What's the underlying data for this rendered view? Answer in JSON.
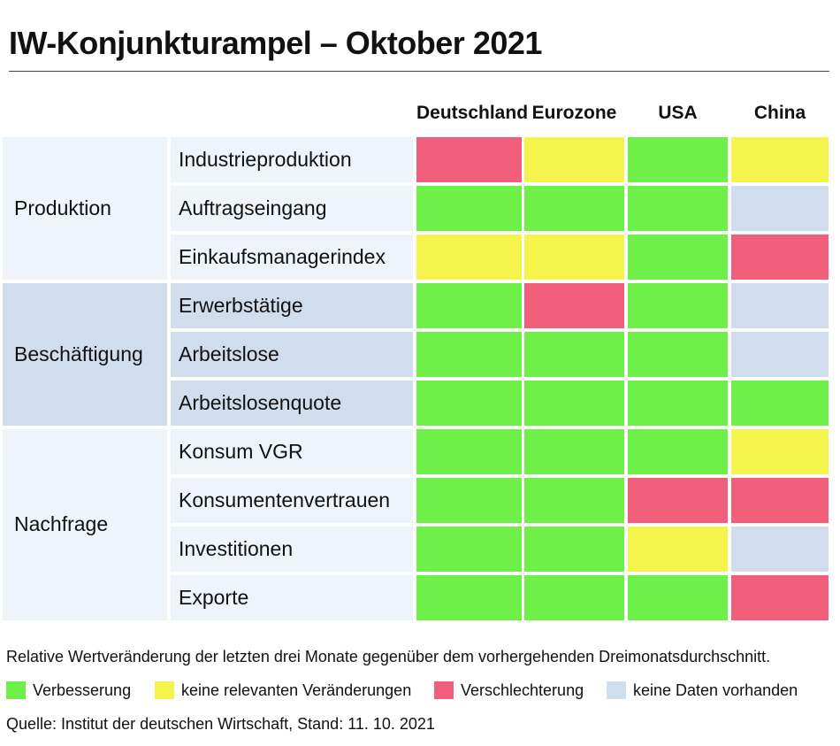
{
  "title": "IW-Konjunkturampel – Oktober 2021",
  "colors": {
    "improvement": "#6ef049",
    "no_change": "#f4f44d",
    "deterioration": "#f25f7a",
    "no_data": "#cfddec",
    "band_light": "#eef4f9",
    "band_dark": "#cfddec"
  },
  "chart_data": {
    "type": "table",
    "columns": [
      "Deutschland",
      "Eurozone",
      "USA",
      "China"
    ],
    "groups": [
      {
        "name": "Produktion",
        "rows": [
          {
            "label": "Industrieproduktion",
            "values": [
              "deterioration",
              "no_change",
              "improvement",
              "no_change"
            ]
          },
          {
            "label": "Auftragseingang",
            "values": [
              "improvement",
              "improvement",
              "improvement",
              "no_data"
            ]
          },
          {
            "label": "Einkaufsmanagerindex",
            "values": [
              "no_change",
              "no_change",
              "improvement",
              "deterioration"
            ]
          }
        ]
      },
      {
        "name": "Beschäftigung",
        "rows": [
          {
            "label": "Erwerbstätige",
            "values": [
              "improvement",
              "deterioration",
              "improvement",
              "no_data"
            ]
          },
          {
            "label": "Arbeitslose",
            "values": [
              "improvement",
              "improvement",
              "improvement",
              "no_data"
            ]
          },
          {
            "label": "Arbeitslosenquote",
            "values": [
              "improvement",
              "improvement",
              "improvement",
              "improvement"
            ]
          }
        ]
      },
      {
        "name": "Nachfrage",
        "rows": [
          {
            "label": "Konsum VGR",
            "values": [
              "improvement",
              "improvement",
              "improvement",
              "no_change"
            ]
          },
          {
            "label": "Konsumentenvertrauen",
            "values": [
              "improvement",
              "improvement",
              "deterioration",
              "deterioration"
            ]
          },
          {
            "label": "Investitionen",
            "values": [
              "improvement",
              "improvement",
              "no_change",
              "no_data"
            ]
          },
          {
            "label": "Exporte",
            "values": [
              "improvement",
              "improvement",
              "improvement",
              "deterioration"
            ]
          }
        ]
      }
    ]
  },
  "note": "Relative Wertveränderung der letzten drei Monate gegenüber dem vorhergehenden Dreimonatsdurchschnitt.",
  "legend": [
    {
      "key": "improvement",
      "label": "Verbesserung"
    },
    {
      "key": "no_change",
      "label": "keine relevanten Veränderungen"
    },
    {
      "key": "deterioration",
      "label": "Verschlechterung"
    },
    {
      "key": "no_data",
      "label": "keine Daten vorhanden"
    }
  ],
  "source": "Quelle: Institut der deutschen Wirtschaft, Stand: 11. 10. 2021"
}
